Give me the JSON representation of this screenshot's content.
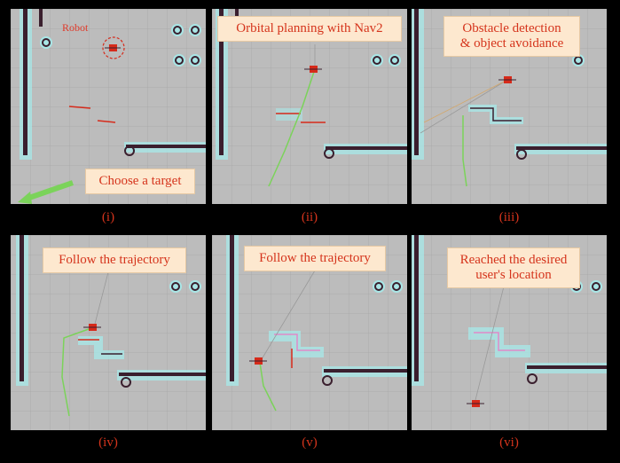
{
  "panels": [
    {
      "caption": "Choose a target",
      "label": "(i)",
      "robot_tag": "Robot"
    },
    {
      "caption": "Orbital planning with Nav2",
      "label": "(ii)"
    },
    {
      "caption_lines": [
        "Obstacle detection",
        "& object avoidance"
      ],
      "label": "(iii)"
    },
    {
      "caption": "Follow the trajectory",
      "label": "(iv)"
    },
    {
      "caption": "Follow the trajectory",
      "label": "(v)"
    },
    {
      "caption_lines": [
        "Reached the desired",
        "user's location"
      ],
      "label": "(vi)"
    }
  ],
  "colors": {
    "map_background": "#bcbcbc",
    "grid": "#a6a6a6",
    "wall": "#3a1f2e",
    "inflation": "#a8e6e6",
    "path": "#7bd35a",
    "robot": "#d62a1a",
    "caption_bg": "#fde8cf",
    "caption_text": "#d5341c",
    "label_text": "#d5341c"
  }
}
